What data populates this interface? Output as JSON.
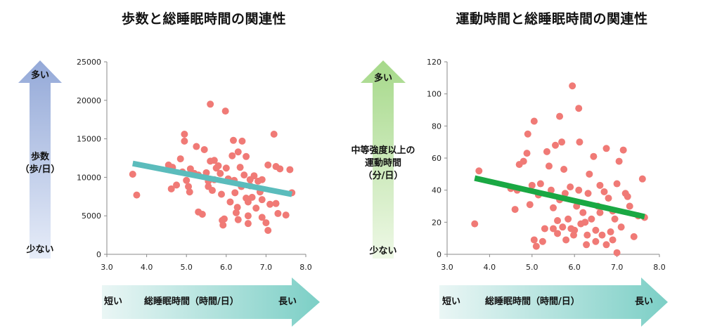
{
  "chart_data": [
    {
      "type": "scatter",
      "title": "歩数と総睡眠時間の関連性",
      "xlabel": "総睡眠時間（時間/日）",
      "ylabel": "歩数（歩/日）",
      "xlim": [
        3.0,
        8.0
      ],
      "ylim": [
        0,
        25000
      ],
      "xticks": [
        "3.0",
        "4.0",
        "5.0",
        "6.0",
        "7.0",
        "8.0"
      ],
      "yticks": [
        "0",
        "5000",
        "10000",
        "15000",
        "20000",
        "25000"
      ],
      "arrow_y": {
        "top": "多い",
        "label": "歩数\n（歩/日）",
        "bottom": "少ない"
      },
      "arrow_x": {
        "left": "短い",
        "label": "総睡眠時間（時間/日）",
        "right": "長い"
      },
      "trend": {
        "x": [
          3.65,
          7.65
        ],
        "y": [
          11800,
          7800
        ],
        "color": "#5bbcbc"
      },
      "point_color": "#f07a76",
      "points": [
        [
          3.65,
          10400
        ],
        [
          3.75,
          7700
        ],
        [
          4.55,
          11600
        ],
        [
          4.62,
          8500
        ],
        [
          4.65,
          11300
        ],
        [
          4.75,
          9000
        ],
        [
          4.85,
          12400
        ],
        [
          4.9,
          10700
        ],
        [
          4.95,
          15600
        ],
        [
          4.95,
          14700
        ],
        [
          5.0,
          9600
        ],
        [
          5.05,
          8800
        ],
        [
          5.08,
          8100
        ],
        [
          5.1,
          11100
        ],
        [
          5.2,
          10500
        ],
        [
          5.25,
          14000
        ],
        [
          5.3,
          10300
        ],
        [
          5.3,
          5500
        ],
        [
          5.4,
          5200
        ],
        [
          5.45,
          13600
        ],
        [
          5.5,
          10600
        ],
        [
          5.55,
          9500
        ],
        [
          5.55,
          8800
        ],
        [
          5.6,
          19500
        ],
        [
          5.6,
          12100
        ],
        [
          5.65,
          8300
        ],
        [
          5.7,
          12200
        ],
        [
          5.7,
          9700
        ],
        [
          5.75,
          11200
        ],
        [
          5.8,
          11500
        ],
        [
          5.85,
          10500
        ],
        [
          5.88,
          7800
        ],
        [
          5.9,
          4400
        ],
        [
          5.92,
          3800
        ],
        [
          5.95,
          4600
        ],
        [
          5.98,
          18600
        ],
        [
          6.0,
          11200
        ],
        [
          6.05,
          9800
        ],
        [
          6.1,
          6800
        ],
        [
          6.15,
          12800
        ],
        [
          6.18,
          14800
        ],
        [
          6.2,
          9600
        ],
        [
          6.22,
          8000
        ],
        [
          6.25,
          5400
        ],
        [
          6.28,
          6100
        ],
        [
          6.3,
          13300
        ],
        [
          6.3,
          4500
        ],
        [
          6.35,
          11300
        ],
        [
          6.38,
          8800
        ],
        [
          6.4,
          14700
        ],
        [
          6.45,
          10300
        ],
        [
          6.5,
          7300
        ],
        [
          6.5,
          12700
        ],
        [
          6.55,
          6800
        ],
        [
          6.55,
          5000
        ],
        [
          6.55,
          4000
        ],
        [
          6.6,
          9700
        ],
        [
          6.6,
          8900
        ],
        [
          6.65,
          7400
        ],
        [
          6.7,
          10200
        ],
        [
          6.75,
          6000
        ],
        [
          6.8,
          9500
        ],
        [
          6.85,
          8100
        ],
        [
          6.9,
          9700
        ],
        [
          6.9,
          7100
        ],
        [
          6.9,
          4800
        ],
        [
          7.0,
          4100
        ],
        [
          7.05,
          3100
        ],
        [
          7.05,
          11600
        ],
        [
          7.1,
          6500
        ],
        [
          7.2,
          15600
        ],
        [
          7.25,
          11400
        ],
        [
          7.25,
          6600
        ],
        [
          7.3,
          5300
        ],
        [
          7.35,
          11100
        ],
        [
          7.5,
          5100
        ],
        [
          7.6,
          11000
        ],
        [
          7.65,
          8000
        ]
      ]
    },
    {
      "type": "scatter",
      "title": "運動時間と総睡眠時間の関連性",
      "xlabel": "総睡眠時間（時間/日）",
      "ylabel": "中等強度以上の運動時間（分/日）",
      "xlim": [
        3.0,
        8.0
      ],
      "ylim": [
        0,
        120
      ],
      "xticks": [
        "3.0",
        "4.0",
        "5.0",
        "6.0",
        "7.0",
        "8.0"
      ],
      "yticks": [
        "0",
        "20",
        "40",
        "60",
        "80",
        "100",
        "120"
      ],
      "arrow_y": {
        "top": "多い",
        "label": "中等強度以上の\n運動時間\n（分/日）",
        "bottom": "少ない"
      },
      "arrow_x": {
        "left": "短い",
        "label": "総睡眠時間（時間/日）",
        "right": "長い"
      },
      "trend": {
        "x": [
          3.65,
          7.65
        ],
        "y": [
          47.5,
          23.5
        ],
        "color": "#1aa843"
      },
      "point_color": "#f07a76",
      "points": [
        [
          3.65,
          19
        ],
        [
          3.75,
          52
        ],
        [
          4.5,
          41
        ],
        [
          4.6,
          28
        ],
        [
          4.65,
          40
        ],
        [
          4.7,
          56
        ],
        [
          4.8,
          58
        ],
        [
          4.88,
          63
        ],
        [
          4.9,
          75
        ],
        [
          4.95,
          31
        ],
        [
          5.0,
          43
        ],
        [
          5.05,
          83
        ],
        [
          5.05,
          9
        ],
        [
          5.1,
          5
        ],
        [
          5.15,
          37
        ],
        [
          5.2,
          44
        ],
        [
          5.25,
          8
        ],
        [
          5.3,
          16
        ],
        [
          5.35,
          64
        ],
        [
          5.4,
          55
        ],
        [
          5.45,
          40
        ],
        [
          5.5,
          16
        ],
        [
          5.5,
          29
        ],
        [
          5.55,
          68
        ],
        [
          5.6,
          21
        ],
        [
          5.6,
          13
        ],
        [
          5.65,
          86
        ],
        [
          5.65,
          34
        ],
        [
          5.7,
          70
        ],
        [
          5.72,
          17
        ],
        [
          5.75,
          53
        ],
        [
          5.78,
          38
        ],
        [
          5.8,
          9
        ],
        [
          5.85,
          22
        ],
        [
          5.9,
          42
        ],
        [
          5.92,
          16
        ],
        [
          5.95,
          105
        ],
        [
          5.98,
          12
        ],
        [
          6.0,
          15
        ],
        [
          6.05,
          30
        ],
        [
          6.1,
          40
        ],
        [
          6.1,
          91
        ],
        [
          6.12,
          70
        ],
        [
          6.15,
          19
        ],
        [
          6.2,
          26
        ],
        [
          6.25,
          20
        ],
        [
          6.28,
          6
        ],
        [
          6.3,
          12
        ],
        [
          6.32,
          38
        ],
        [
          6.35,
          50
        ],
        [
          6.4,
          22
        ],
        [
          6.45,
          61
        ],
        [
          6.5,
          15
        ],
        [
          6.5,
          8
        ],
        [
          6.55,
          30
        ],
        [
          6.6,
          43
        ],
        [
          6.6,
          26
        ],
        [
          6.65,
          12
        ],
        [
          6.7,
          39
        ],
        [
          6.75,
          6
        ],
        [
          6.75,
          66
        ],
        [
          6.8,
          35
        ],
        [
          6.85,
          14
        ],
        [
          6.9,
          27
        ],
        [
          6.9,
          9
        ],
        [
          6.95,
          22
        ],
        [
          7.0,
          1
        ],
        [
          7.0,
          44
        ],
        [
          7.05,
          58
        ],
        [
          7.1,
          17
        ],
        [
          7.15,
          65
        ],
        [
          7.2,
          38
        ],
        [
          7.25,
          36
        ],
        [
          7.3,
          30
        ],
        [
          7.4,
          11
        ],
        [
          7.5,
          24
        ],
        [
          7.6,
          47
        ],
        [
          7.65,
          23
        ]
      ]
    }
  ]
}
